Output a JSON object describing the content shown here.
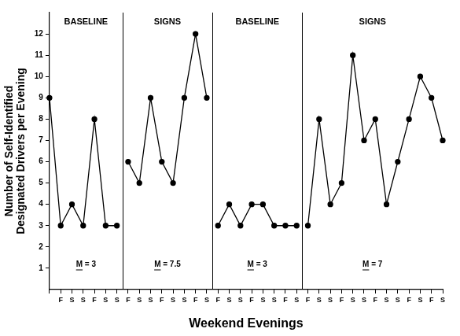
{
  "chart_data": {
    "type": "line",
    "x_label": "Weekend Evenings",
    "y_label": [
      "Number of Self-Identified",
      "Designated Drivers per Evening"
    ],
    "categories": [
      null,
      "F",
      "S",
      "S",
      "F",
      "S",
      "S",
      "F",
      "S",
      "S",
      "F",
      "S",
      "S",
      "F",
      "S",
      "F",
      "S",
      "S",
      "F",
      "S",
      "S",
      "F",
      "S",
      "F",
      "S",
      "S",
      "F",
      "S",
      "S",
      "F",
      "S",
      "S",
      "F",
      "S",
      "F",
      "S"
    ],
    "series": [
      {
        "name": "BASELINE",
        "annotation": "M = 3",
        "color": "#000000",
        "marker": "circle",
        "values": [
          9,
          3,
          4,
          3,
          8,
          3,
          3,
          null,
          null,
          null,
          null,
          null,
          null,
          null,
          null,
          null,
          null,
          null,
          null,
          null,
          null,
          null,
          null,
          null,
          null,
          null,
          null,
          null,
          null,
          null,
          null,
          null,
          null,
          null,
          null,
          null
        ]
      },
      {
        "name": "SIGNS",
        "annotation": "M = 7.5",
        "color": "#000000",
        "marker": "circle",
        "values": [
          null,
          null,
          null,
          null,
          null,
          null,
          null,
          6,
          5,
          9,
          6,
          5,
          9,
          12,
          9,
          null,
          null,
          null,
          null,
          null,
          null,
          null,
          null,
          null,
          null,
          null,
          null,
          null,
          null,
          null,
          null,
          null,
          null,
          null,
          null,
          null
        ]
      },
      {
        "name": "BASELINE",
        "annotation": "M = 3",
        "color": "#000000",
        "marker": "circle",
        "values": [
          null,
          null,
          null,
          null,
          null,
          null,
          null,
          null,
          null,
          null,
          null,
          null,
          null,
          null,
          null,
          3,
          4,
          3,
          4,
          4,
          3,
          3,
          3,
          null,
          null,
          null,
          null,
          null,
          null,
          null,
          null,
          null,
          null,
          null,
          null,
          null
        ]
      },
      {
        "name": "SIGNS",
        "annotation": "M = 7",
        "color": "#000000",
        "marker": "circle",
        "values": [
          null,
          null,
          null,
          null,
          null,
          null,
          null,
          null,
          null,
          null,
          null,
          null,
          null,
          null,
          null,
          null,
          null,
          null,
          null,
          null,
          null,
          null,
          null,
          3,
          8,
          4,
          5,
          11,
          7,
          8,
          4,
          6,
          8,
          10,
          9,
          7
        ]
      }
    ],
    "ylim": [
      0,
      13
    ],
    "yticks": [
      1,
      2,
      3,
      4,
      5,
      6,
      7,
      8,
      9,
      10,
      11,
      12
    ],
    "grid": false
  }
}
